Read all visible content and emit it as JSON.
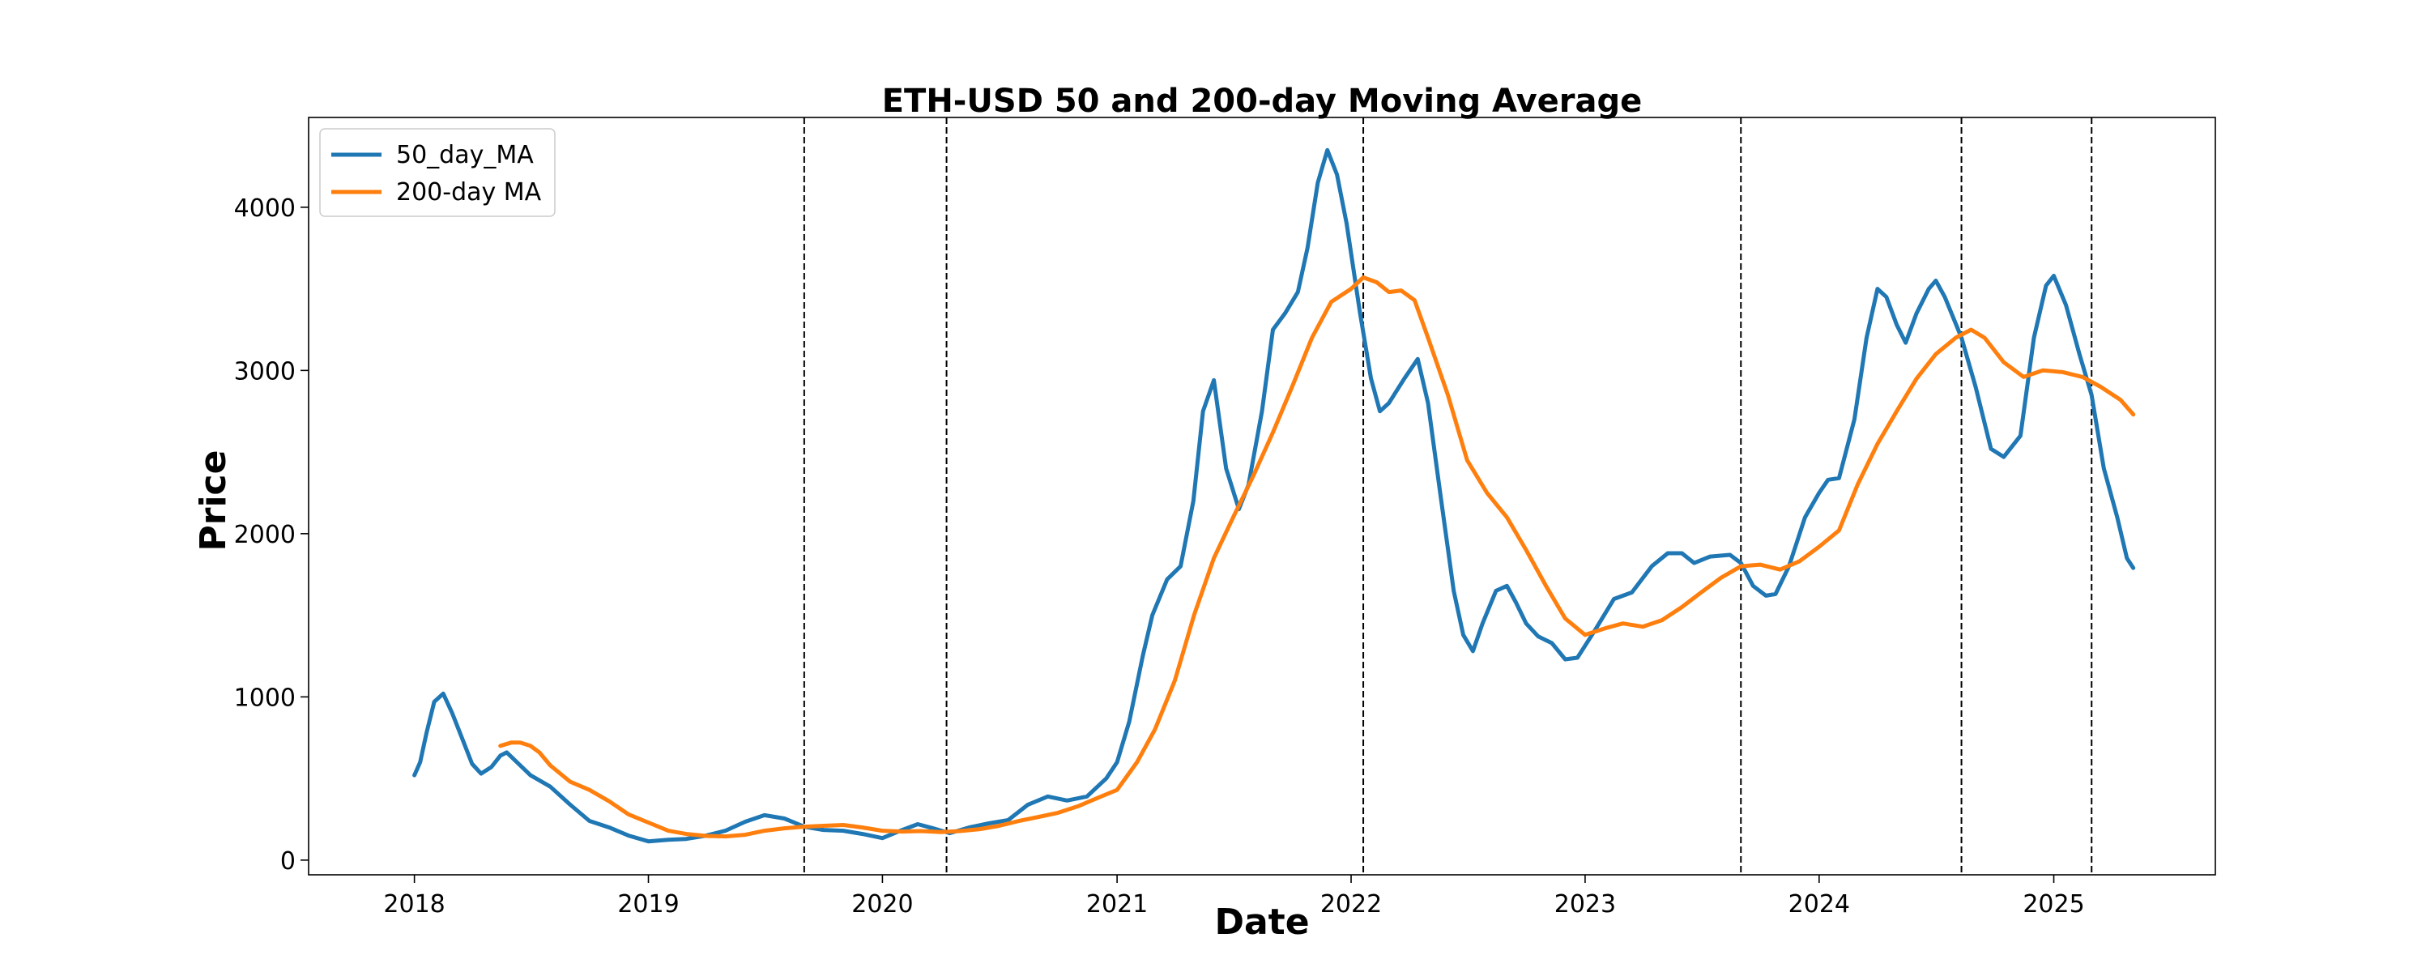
{
  "chart_data": {
    "type": "line",
    "title": "ETH-USD 50 and 200-day Moving Average",
    "xlabel": "Date",
    "ylabel": "Price",
    "xlim": [
      "2017-07-20",
      "2025-09-10"
    ],
    "ylim": [
      -90,
      4550
    ],
    "x_ticks": [
      "2018",
      "2019",
      "2020",
      "2021",
      "2022",
      "2023",
      "2024",
      "2025"
    ],
    "y_ticks": [
      "0",
      "1000",
      "2000",
      "3000",
      "4000"
    ],
    "grid": false,
    "legend_position": "upper left",
    "vertical_lines": [
      "2019-09-01",
      "2020-04-10",
      "2022-01-20",
      "2023-09-01",
      "2024-08-10",
      "2025-03-01"
    ],
    "series": [
      {
        "name": "50_day_MA",
        "color": "#1f77b4",
        "points": [
          [
            "2018-01-01",
            520
          ],
          [
            "2018-01-10",
            600
          ],
          [
            "2018-01-20",
            780
          ],
          [
            "2018-02-01",
            970
          ],
          [
            "2018-02-15",
            1020
          ],
          [
            "2018-03-01",
            900
          ],
          [
            "2018-03-15",
            760
          ],
          [
            "2018-04-01",
            590
          ],
          [
            "2018-04-15",
            530
          ],
          [
            "2018-05-01",
            570
          ],
          [
            "2018-05-15",
            640
          ],
          [
            "2018-05-25",
            660
          ],
          [
            "2018-06-10",
            600
          ],
          [
            "2018-07-01",
            520
          ],
          [
            "2018-08-01",
            450
          ],
          [
            "2018-09-01",
            340
          ],
          [
            "2018-10-01",
            240
          ],
          [
            "2018-11-01",
            200
          ],
          [
            "2018-12-01",
            150
          ],
          [
            "2019-01-01",
            115
          ],
          [
            "2019-02-01",
            125
          ],
          [
            "2019-03-01",
            130
          ],
          [
            "2019-04-01",
            150
          ],
          [
            "2019-05-01",
            180
          ],
          [
            "2019-06-01",
            235
          ],
          [
            "2019-07-01",
            275
          ],
          [
            "2019-08-01",
            255
          ],
          [
            "2019-09-01",
            205
          ],
          [
            "2019-10-01",
            185
          ],
          [
            "2019-11-01",
            180
          ],
          [
            "2019-12-01",
            160
          ],
          [
            "2020-01-01",
            135
          ],
          [
            "2020-02-01",
            185
          ],
          [
            "2020-02-25",
            220
          ],
          [
            "2020-03-20",
            195
          ],
          [
            "2020-04-15",
            165
          ],
          [
            "2020-05-15",
            200
          ],
          [
            "2020-06-15",
            225
          ],
          [
            "2020-07-15",
            245
          ],
          [
            "2020-08-15",
            340
          ],
          [
            "2020-09-15",
            390
          ],
          [
            "2020-10-15",
            365
          ],
          [
            "2020-11-15",
            390
          ],
          [
            "2020-12-15",
            500
          ],
          [
            "2021-01-01",
            600
          ],
          [
            "2021-01-20",
            850
          ],
          [
            "2021-02-10",
            1250
          ],
          [
            "2021-02-25",
            1500
          ],
          [
            "2021-03-20",
            1720
          ],
          [
            "2021-04-10",
            1800
          ],
          [
            "2021-04-30",
            2200
          ],
          [
            "2021-05-15",
            2750
          ],
          [
            "2021-06-01",
            2940
          ],
          [
            "2021-06-20",
            2400
          ],
          [
            "2021-07-10",
            2150
          ],
          [
            "2021-07-25",
            2300
          ],
          [
            "2021-08-15",
            2750
          ],
          [
            "2021-09-01",
            3250
          ],
          [
            "2021-09-20",
            3350
          ],
          [
            "2021-10-10",
            3480
          ],
          [
            "2021-10-25",
            3750
          ],
          [
            "2021-11-10",
            4150
          ],
          [
            "2021-11-25",
            4350
          ],
          [
            "2021-12-10",
            4200
          ],
          [
            "2021-12-25",
            3900
          ],
          [
            "2022-01-15",
            3350
          ],
          [
            "2022-02-01",
            2950
          ],
          [
            "2022-02-15",
            2750
          ],
          [
            "2022-03-01",
            2800
          ],
          [
            "2022-03-25",
            2950
          ],
          [
            "2022-04-15",
            3070
          ],
          [
            "2022-05-01",
            2800
          ],
          [
            "2022-05-20",
            2250
          ],
          [
            "2022-06-10",
            1650
          ],
          [
            "2022-06-25",
            1380
          ],
          [
            "2022-07-10",
            1280
          ],
          [
            "2022-07-25",
            1450
          ],
          [
            "2022-08-15",
            1650
          ],
          [
            "2022-09-01",
            1680
          ],
          [
            "2022-09-15",
            1580
          ],
          [
            "2022-10-01",
            1450
          ],
          [
            "2022-10-20",
            1370
          ],
          [
            "2022-11-10",
            1330
          ],
          [
            "2022-12-01",
            1230
          ],
          [
            "2022-12-20",
            1240
          ],
          [
            "2023-01-15",
            1400
          ],
          [
            "2023-02-15",
            1600
          ],
          [
            "2023-03-15",
            1640
          ],
          [
            "2023-04-15",
            1800
          ],
          [
            "2023-05-10",
            1880
          ],
          [
            "2023-06-01",
            1880
          ],
          [
            "2023-06-20",
            1820
          ],
          [
            "2023-07-15",
            1860
          ],
          [
            "2023-08-15",
            1870
          ],
          [
            "2023-09-01",
            1820
          ],
          [
            "2023-09-20",
            1680
          ],
          [
            "2023-10-10",
            1620
          ],
          [
            "2023-10-25",
            1630
          ],
          [
            "2023-11-15",
            1800
          ],
          [
            "2023-12-10",
            2100
          ],
          [
            "2024-01-01",
            2250
          ],
          [
            "2024-01-15",
            2330
          ],
          [
            "2024-02-01",
            2340
          ],
          [
            "2024-02-25",
            2700
          ],
          [
            "2024-03-15",
            3200
          ],
          [
            "2024-04-01",
            3500
          ],
          [
            "2024-04-15",
            3450
          ],
          [
            "2024-05-01",
            3280
          ],
          [
            "2024-05-15",
            3170
          ],
          [
            "2024-06-01",
            3350
          ],
          [
            "2024-06-20",
            3500
          ],
          [
            "2024-07-01",
            3550
          ],
          [
            "2024-07-15",
            3450
          ],
          [
            "2024-08-10",
            3200
          ],
          [
            "2024-09-01",
            2900
          ],
          [
            "2024-09-25",
            2520
          ],
          [
            "2024-10-15",
            2470
          ],
          [
            "2024-11-10",
            2600
          ],
          [
            "2024-12-01",
            3200
          ],
          [
            "2024-12-20",
            3520
          ],
          [
            "2025-01-01",
            3580
          ],
          [
            "2025-01-20",
            3400
          ],
          [
            "2025-02-10",
            3100
          ],
          [
            "2025-03-01",
            2850
          ],
          [
            "2025-03-20",
            2400
          ],
          [
            "2025-04-10",
            2100
          ],
          [
            "2025-04-25",
            1850
          ],
          [
            "2025-05-05",
            1790
          ]
        ]
      },
      {
        "name": "200-day MA",
        "color": "#ff7f0e",
        "points": [
          [
            "2018-05-15",
            700
          ],
          [
            "2018-06-01",
            720
          ],
          [
            "2018-06-15",
            720
          ],
          [
            "2018-07-01",
            700
          ],
          [
            "2018-07-15",
            660
          ],
          [
            "2018-08-01",
            580
          ],
          [
            "2018-09-01",
            480
          ],
          [
            "2018-10-01",
            430
          ],
          [
            "2018-11-01",
            360
          ],
          [
            "2018-12-01",
            280
          ],
          [
            "2019-01-01",
            230
          ],
          [
            "2019-02-01",
            180
          ],
          [
            "2019-03-01",
            160
          ],
          [
            "2019-04-01",
            148
          ],
          [
            "2019-05-01",
            145
          ],
          [
            "2019-06-01",
            155
          ],
          [
            "2019-07-01",
            180
          ],
          [
            "2019-08-01",
            195
          ],
          [
            "2019-09-01",
            205
          ],
          [
            "2019-10-01",
            210
          ],
          [
            "2019-11-01",
            215
          ],
          [
            "2019-12-01",
            200
          ],
          [
            "2020-01-01",
            180
          ],
          [
            "2020-02-01",
            175
          ],
          [
            "2020-03-01",
            178
          ],
          [
            "2020-04-01",
            172
          ],
          [
            "2020-05-01",
            178
          ],
          [
            "2020-06-01",
            190
          ],
          [
            "2020-07-01",
            210
          ],
          [
            "2020-08-01",
            240
          ],
          [
            "2020-09-01",
            265
          ],
          [
            "2020-10-01",
            290
          ],
          [
            "2020-11-01",
            330
          ],
          [
            "2020-12-01",
            380
          ],
          [
            "2021-01-01",
            430
          ],
          [
            "2021-02-01",
            600
          ],
          [
            "2021-03-01",
            800
          ],
          [
            "2021-04-01",
            1100
          ],
          [
            "2021-05-01",
            1500
          ],
          [
            "2021-06-01",
            1850
          ],
          [
            "2021-07-01",
            2100
          ],
          [
            "2021-08-01",
            2350
          ],
          [
            "2021-09-01",
            2620
          ],
          [
            "2021-10-01",
            2900
          ],
          [
            "2021-11-01",
            3200
          ],
          [
            "2021-12-01",
            3420
          ],
          [
            "2022-01-01",
            3500
          ],
          [
            "2022-01-20",
            3570
          ],
          [
            "2022-02-10",
            3540
          ],
          [
            "2022-03-01",
            3480
          ],
          [
            "2022-03-20",
            3490
          ],
          [
            "2022-04-10",
            3430
          ],
          [
            "2022-05-01",
            3200
          ],
          [
            "2022-06-01",
            2850
          ],
          [
            "2022-07-01",
            2450
          ],
          [
            "2022-08-01",
            2250
          ],
          [
            "2022-09-01",
            2100
          ],
          [
            "2022-10-01",
            1900
          ],
          [
            "2022-11-01",
            1680
          ],
          [
            "2022-12-01",
            1480
          ],
          [
            "2023-01-01",
            1380
          ],
          [
            "2023-02-01",
            1420
          ],
          [
            "2023-03-01",
            1450
          ],
          [
            "2023-04-01",
            1430
          ],
          [
            "2023-05-01",
            1470
          ],
          [
            "2023-06-01",
            1550
          ],
          [
            "2023-07-01",
            1640
          ],
          [
            "2023-08-01",
            1730
          ],
          [
            "2023-09-01",
            1800
          ],
          [
            "2023-10-01",
            1810
          ],
          [
            "2023-11-01",
            1780
          ],
          [
            "2023-12-01",
            1830
          ],
          [
            "2024-01-01",
            1920
          ],
          [
            "2024-02-01",
            2020
          ],
          [
            "2024-03-01",
            2300
          ],
          [
            "2024-04-01",
            2550
          ],
          [
            "2024-05-01",
            2750
          ],
          [
            "2024-06-01",
            2950
          ],
          [
            "2024-07-01",
            3100
          ],
          [
            "2024-08-01",
            3200
          ],
          [
            "2024-08-25",
            3250
          ],
          [
            "2024-09-15",
            3200
          ],
          [
            "2024-10-15",
            3050
          ],
          [
            "2024-11-15",
            2960
          ],
          [
            "2024-12-15",
            3000
          ],
          [
            "2025-01-15",
            2990
          ],
          [
            "2025-02-15",
            2960
          ],
          [
            "2025-03-15",
            2900
          ],
          [
            "2025-04-15",
            2820
          ],
          [
            "2025-05-05",
            2730
          ]
        ]
      }
    ]
  }
}
